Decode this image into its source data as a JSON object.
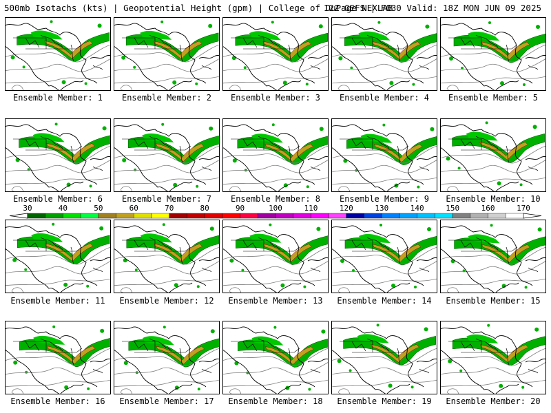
{
  "header": {
    "left": "500mb Isotachs (kts) | Geopotential Height (gpm) | College of DuPage NEXLAB",
    "right": "12Z GEFS | F030 Valid: 18Z MON JUN 09 2025"
  },
  "panels": [
    {
      "label": "Ensemble Member: 1"
    },
    {
      "label": "Ensemble Member: 2"
    },
    {
      "label": "Ensemble Member: 3"
    },
    {
      "label": "Ensemble Member: 4"
    },
    {
      "label": "Ensemble Member: 5"
    },
    {
      "label": "Ensemble Member: 6"
    },
    {
      "label": "Ensemble Member: 7"
    },
    {
      "label": "Ensemble Member: 8"
    },
    {
      "label": "Ensemble Member: 9"
    },
    {
      "label": "Ensemble Member: 10"
    },
    {
      "label": "Ensemble Member: 11"
    },
    {
      "label": "Ensemble Member: 12"
    },
    {
      "label": "Ensemble Member: 13"
    },
    {
      "label": "Ensemble Member: 14"
    },
    {
      "label": "Ensemble Member: 15"
    },
    {
      "label": "Ensemble Member: 16"
    },
    {
      "label": "Ensemble Member: 17"
    },
    {
      "label": "Ensemble Member: 18"
    },
    {
      "label": "Ensemble Member: 19"
    },
    {
      "label": "Ensemble Member: 20"
    }
  ],
  "colorbar": {
    "ticks": [
      "30",
      "40",
      "50",
      "60",
      "70",
      "80",
      "90",
      "100",
      "110",
      "120",
      "130",
      "140",
      "150",
      "160",
      "170"
    ],
    "colors": [
      "#006400",
      "#00a000",
      "#00e000",
      "#00ff40",
      "#a08020",
      "#c0a020",
      "#e0e000",
      "#ffff00",
      "#a00000",
      "#c00000",
      "#e00000",
      "#ff0000",
      "#ff0040",
      "#a000a0",
      "#c000c0",
      "#e000e0",
      "#ff00ff",
      "#ff40ff",
      "#0000a0",
      "#0040e0",
      "#0080ff",
      "#00a0ff",
      "#00c0ff",
      "#00e0ff",
      "#808080",
      "#b0b0b0",
      "#d0d0d0",
      "#ffffff"
    ]
  }
}
